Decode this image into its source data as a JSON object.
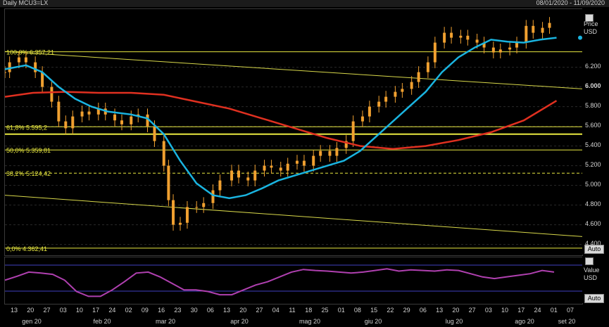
{
  "header": {
    "title": "Daily MCU3=LX",
    "date_range": "08/01/2020 - 11/09/2020"
  },
  "price_panel": {
    "legend_label": "Price",
    "currency": "USD",
    "auto_label": "Auto"
  },
  "indicator_panel": {
    "legend_label": "Value",
    "currency": "USD",
    "auto_label": "Auto"
  },
  "colors": {
    "background": "#000000",
    "candles": "#f0a030",
    "ma_short": "#1ab4e0",
    "ma_long": "#e03020",
    "fib_lines": "#e8e840",
    "trend_lines": "#d8d84a",
    "oscillator": "#b040b0",
    "osc_bounds": "#4040c0"
  },
  "chart_data": [
    {
      "type": "candlestick",
      "title": "Daily MCU3=LX",
      "ylabel": "USD",
      "ylim": [
        4.29,
        6.79
      ],
      "y_ticks": [
        "4.400",
        "4.600",
        "4.800",
        "5.000",
        "5.200",
        "5.400",
        "5.600",
        "5.800",
        "6.000",
        "6.200"
      ],
      "x_tick_labels": [
        "13",
        "20",
        "27",
        "03",
        "10",
        "17",
        "24",
        "02",
        "09",
        "16",
        "23",
        "30",
        "06",
        "13",
        "20",
        "27",
        "04",
        "11",
        "18",
        "25",
        "01",
        "08",
        "15",
        "22",
        "29",
        "06",
        "13",
        "20",
        "27",
        "03",
        "10",
        "17",
        "24",
        "01",
        "07"
      ],
      "month_labels": [
        "gen 20",
        "feb 20",
        "mar 20",
        "apr 20",
        "mag 20",
        "giu 20",
        "lug 20",
        "ago 20",
        "set 20"
      ],
      "fibonacci": [
        {
          "label": "100,0% 6.357,21",
          "value": 6.357
        },
        {
          "label": "61,8% 5.595,2",
          "value": 5.595
        },
        {
          "label": "50,0% 5.359,81",
          "value": 5.36
        },
        {
          "label": "38,2% 5.124,42",
          "value": 5.124
        },
        {
          "label": "0,0% 4.362,41",
          "value": 4.362
        }
      ],
      "horizontal_line": 5.52,
      "trend_lines": [
        {
          "from": [
            "2020-01-08",
            6.36
          ],
          "to": [
            "2020-09-11",
            5.98
          ]
        },
        {
          "from": [
            "2020-01-08",
            4.9
          ],
          "to": [
            "2020-09-11",
            4.48
          ]
        }
      ],
      "price_series": [
        [
          "2020-01-08",
          6.15
        ],
        [
          "2020-01-10",
          6.25
        ],
        [
          "2020-01-14",
          6.3
        ],
        [
          "2020-01-17",
          6.25
        ],
        [
          "2020-01-21",
          6.15
        ],
        [
          "2020-01-24",
          6.0
        ],
        [
          "2020-01-28",
          5.85
        ],
        [
          "2020-01-31",
          5.65
        ],
        [
          "2020-02-03",
          5.58
        ],
        [
          "2020-02-06",
          5.7
        ],
        [
          "2020-02-10",
          5.75
        ],
        [
          "2020-02-13",
          5.72
        ],
        [
          "2020-02-17",
          5.78
        ],
        [
          "2020-02-20",
          5.72
        ],
        [
          "2020-02-24",
          5.66
        ],
        [
          "2020-02-27",
          5.62
        ],
        [
          "2020-03-02",
          5.7
        ],
        [
          "2020-03-05",
          5.72
        ],
        [
          "2020-03-09",
          5.6
        ],
        [
          "2020-03-12",
          5.45
        ],
        [
          "2020-03-16",
          5.2
        ],
        [
          "2020-03-18",
          4.85
        ],
        [
          "2020-03-20",
          4.6
        ],
        [
          "2020-03-23",
          4.62
        ],
        [
          "2020-03-26",
          4.78
        ],
        [
          "2020-03-30",
          4.78
        ],
        [
          "2020-04-02",
          4.82
        ],
        [
          "2020-04-06",
          4.95
        ],
        [
          "2020-04-09",
          5.05
        ],
        [
          "2020-04-14",
          5.15
        ],
        [
          "2020-04-17",
          5.08
        ],
        [
          "2020-04-21",
          5.05
        ],
        [
          "2020-04-24",
          5.15
        ],
        [
          "2020-04-28",
          5.2
        ],
        [
          "2020-05-01",
          5.18
        ],
        [
          "2020-05-05",
          5.15
        ],
        [
          "2020-05-08",
          5.22
        ],
        [
          "2020-05-12",
          5.25
        ],
        [
          "2020-05-15",
          5.2
        ],
        [
          "2020-05-19",
          5.3
        ],
        [
          "2020-05-22",
          5.35
        ],
        [
          "2020-05-26",
          5.3
        ],
        [
          "2020-05-29",
          5.38
        ],
        [
          "2020-06-02",
          5.45
        ],
        [
          "2020-06-05",
          5.65
        ],
        [
          "2020-06-09",
          5.7
        ],
        [
          "2020-06-12",
          5.8
        ],
        [
          "2020-06-16",
          5.85
        ],
        [
          "2020-06-19",
          5.9
        ],
        [
          "2020-06-23",
          5.95
        ],
        [
          "2020-06-26",
          5.98
        ],
        [
          "2020-06-30",
          6.05
        ],
        [
          "2020-07-03",
          6.15
        ],
        [
          "2020-07-07",
          6.25
        ],
        [
          "2020-07-10",
          6.45
        ],
        [
          "2020-07-14",
          6.55
        ],
        [
          "2020-07-17",
          6.5
        ],
        [
          "2020-07-21",
          6.52
        ],
        [
          "2020-07-24",
          6.48
        ],
        [
          "2020-07-28",
          6.45
        ],
        [
          "2020-07-31",
          6.4
        ],
        [
          "2020-08-04",
          6.35
        ],
        [
          "2020-08-07",
          6.38
        ],
        [
          "2020-08-11",
          6.4
        ],
        [
          "2020-08-14",
          6.45
        ],
        [
          "2020-08-18",
          6.62
        ],
        [
          "2020-08-21",
          6.55
        ],
        [
          "2020-08-25",
          6.6
        ],
        [
          "2020-08-28",
          6.65
        ]
      ],
      "ma_short_series": [
        [
          "2020-01-08",
          6.18
        ],
        [
          "2020-01-17",
          6.22
        ],
        [
          "2020-01-24",
          6.15
        ],
        [
          "2020-01-31",
          6.0
        ],
        [
          "2020-02-07",
          5.88
        ],
        [
          "2020-02-14",
          5.8
        ],
        [
          "2020-02-21",
          5.75
        ],
        [
          "2020-03-02",
          5.72
        ],
        [
          "2020-03-09",
          5.68
        ],
        [
          "2020-03-16",
          5.52
        ],
        [
          "2020-03-23",
          5.25
        ],
        [
          "2020-03-30",
          5.02
        ],
        [
          "2020-04-06",
          4.9
        ],
        [
          "2020-04-13",
          4.87
        ],
        [
          "2020-04-20",
          4.9
        ],
        [
          "2020-04-27",
          4.97
        ],
        [
          "2020-05-04",
          5.05
        ],
        [
          "2020-05-11",
          5.1
        ],
        [
          "2020-05-18",
          5.15
        ],
        [
          "2020-05-25",
          5.2
        ],
        [
          "2020-06-01",
          5.25
        ],
        [
          "2020-06-08",
          5.35
        ],
        [
          "2020-06-15",
          5.5
        ],
        [
          "2020-06-22",
          5.65
        ],
        [
          "2020-06-29",
          5.8
        ],
        [
          "2020-07-06",
          5.95
        ],
        [
          "2020-07-13",
          6.15
        ],
        [
          "2020-07-20",
          6.3
        ],
        [
          "2020-07-27",
          6.4
        ],
        [
          "2020-08-03",
          6.48
        ],
        [
          "2020-08-10",
          6.46
        ],
        [
          "2020-08-17",
          6.45
        ],
        [
          "2020-08-24",
          6.48
        ],
        [
          "2020-08-31",
          6.5
        ]
      ],
      "ma_long_series": [
        [
          "2020-01-08",
          5.9
        ],
        [
          "2020-01-20",
          5.94
        ],
        [
          "2020-02-03",
          5.95
        ],
        [
          "2020-02-17",
          5.94
        ],
        [
          "2020-03-02",
          5.94
        ],
        [
          "2020-03-16",
          5.92
        ],
        [
          "2020-03-30",
          5.85
        ],
        [
          "2020-04-13",
          5.78
        ],
        [
          "2020-04-27",
          5.68
        ],
        [
          "2020-05-11",
          5.58
        ],
        [
          "2020-05-25",
          5.48
        ],
        [
          "2020-06-08",
          5.4
        ],
        [
          "2020-06-22",
          5.37
        ],
        [
          "2020-07-06",
          5.4
        ],
        [
          "2020-07-20",
          5.46
        ],
        [
          "2020-08-03",
          5.54
        ],
        [
          "2020-08-17",
          5.66
        ],
        [
          "2020-08-31",
          5.86
        ]
      ]
    },
    {
      "type": "line",
      "ylabel": "Value",
      "series": [
        {
          "values": [
            0.6,
            0.72,
            0.85,
            0.82,
            0.78,
            0.6,
            0.25,
            0.1,
            0.1,
            0.3,
            0.55,
            0.82,
            0.85,
            0.7,
            0.5,
            0.3,
            0.3,
            0.25,
            0.15,
            0.15,
            0.3,
            0.45,
            0.55,
            0.7,
            0.85,
            0.93,
            0.9,
            0.88,
            0.85,
            0.82,
            0.85,
            0.9,
            0.95,
            0.88,
            0.92,
            0.9,
            0.88,
            0.92,
            0.9,
            0.8,
            0.7,
            0.65,
            0.7,
            0.75,
            0.8,
            0.9,
            0.85
          ]
        }
      ]
    }
  ]
}
